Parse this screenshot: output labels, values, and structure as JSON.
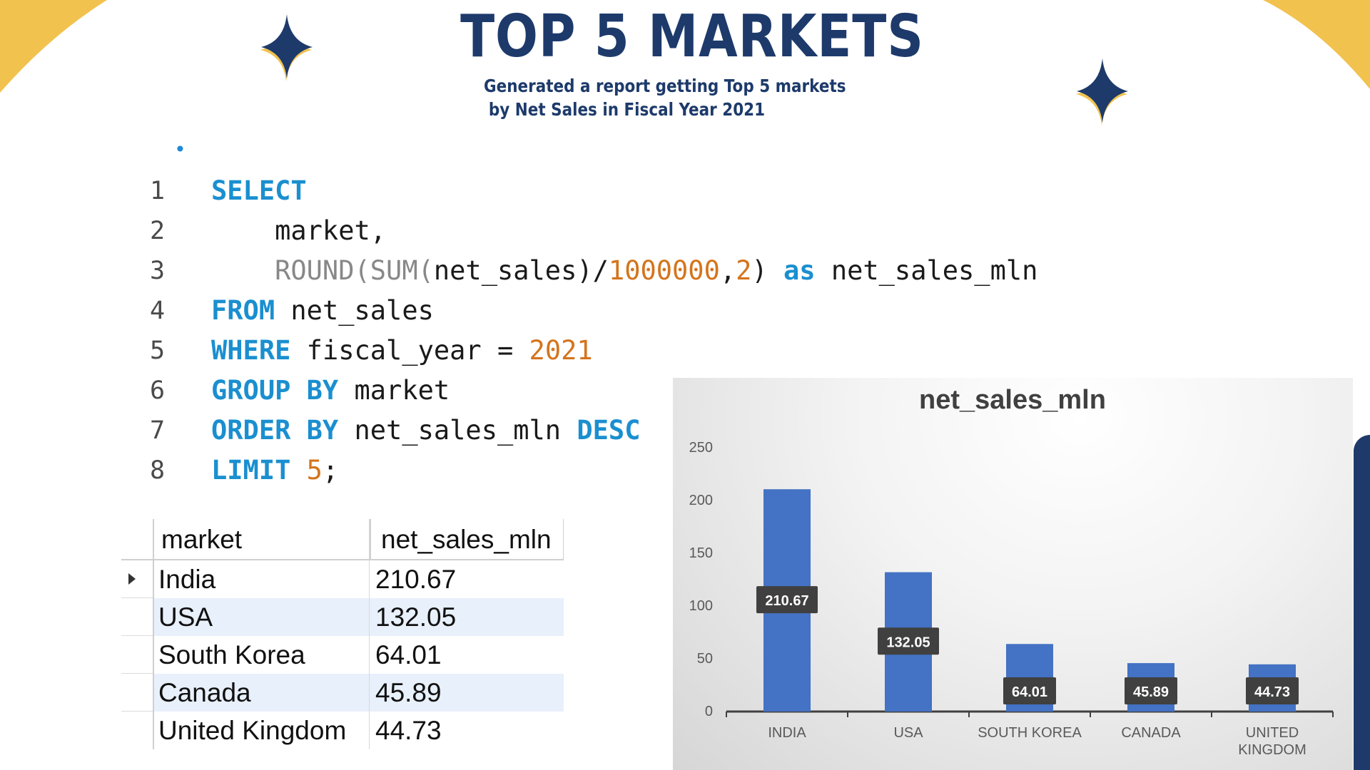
{
  "slide": {
    "title": "TOP 5 MARKETS",
    "subtitle_line1": "Generated a report getting Top 5 markets",
    "subtitle_line2": "by Net Sales in Fiscal Year 2021",
    "colors": {
      "navy": "#1d3a6b",
      "gold": "#f2c24f",
      "keyword": "#1a8fd0",
      "number": "#d4741c",
      "bar": "#4472c4"
    },
    "decorations": [
      "corner-wedge-top-left",
      "corner-wedge-top-right",
      "sparkle-star-icon",
      "sparkle-star-icon"
    ]
  },
  "code": {
    "lines": [
      {
        "num": "1",
        "dot": "•"
      },
      {
        "num": "2"
      },
      {
        "num": "3"
      },
      {
        "num": "4"
      },
      {
        "num": "5"
      },
      {
        "num": "6"
      },
      {
        "num": "7"
      },
      {
        "num": "8"
      }
    ],
    "tokens": {
      "select": "SELECT",
      "market_col": "market,",
      "round_fn": "ROUND(",
      "sum_fn": "SUM(",
      "net_sales_arg": "net_sales)/",
      "million": "1000000",
      "comma": ",",
      "two": "2",
      "close": ")",
      "as_kw": "as",
      "alias": "net_sales_mln",
      "from_kw": "FROM",
      "from_table": "net_sales",
      "where_kw": "WHERE",
      "where_col": "fiscal_year =",
      "year": "2021",
      "group_kw": "GROUP BY",
      "group_col": "market",
      "order_kw": "ORDER BY",
      "order_col": "net_sales_mln",
      "desc_kw": "DESC",
      "limit_kw": "LIMIT",
      "limit_val": "5",
      "semicolon": ";"
    }
  },
  "result_grid": {
    "columns": [
      "market",
      "net_sales_mln"
    ],
    "rows": [
      [
        "India",
        "210.67"
      ],
      [
        "USA",
        "132.05"
      ],
      [
        "South Korea",
        "64.01"
      ],
      [
        "Canada",
        "45.89"
      ],
      [
        "United Kingdom",
        "44.73"
      ]
    ]
  },
  "chart_data": {
    "type": "bar",
    "title": "net_sales_mln",
    "categories": [
      "INDIA",
      "USA",
      "SOUTH KOREA",
      "CANADA",
      "UNITED KINGDOM"
    ],
    "category_lines": [
      [
        "INDIA"
      ],
      [
        "USA"
      ],
      [
        "SOUTH KOREA"
      ],
      [
        "CANADA"
      ],
      [
        "UNITED",
        "KINGDOM"
      ]
    ],
    "values": [
      210.67,
      132.05,
      64.01,
      45.89,
      44.73
    ],
    "data_labels": [
      "210.67",
      "132.05",
      "64.01",
      "45.89",
      "44.73"
    ],
    "ylim": [
      0,
      250
    ],
    "yticks": [
      0,
      50,
      100,
      150,
      200,
      250
    ],
    "grid": false,
    "legend": "none",
    "bar_color": "#4472c4"
  }
}
